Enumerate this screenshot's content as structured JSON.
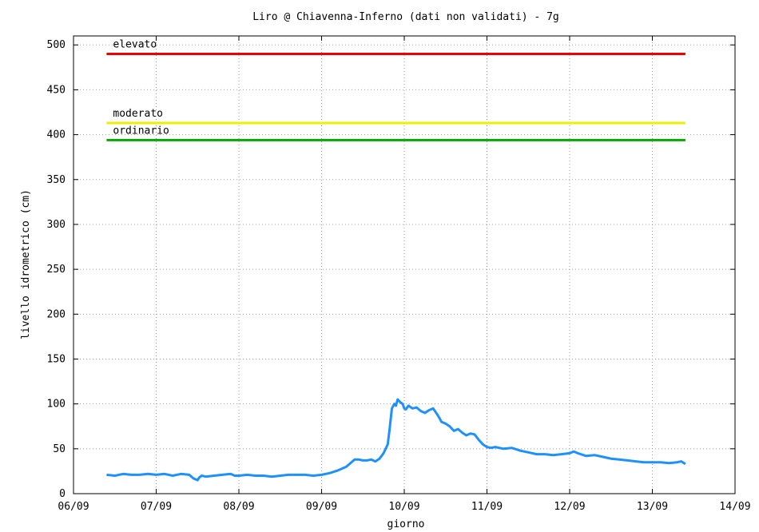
{
  "chart_data": {
    "type": "line",
    "title": "Liro @  Chiavenna-Inferno (dati non validati) - 7g",
    "xlabel": "giorno",
    "ylabel": "livello idrometrico (cm)",
    "ylim": [
      0,
      510
    ],
    "xlim": [
      0,
      8
    ],
    "yticks": [
      0,
      50,
      100,
      150,
      200,
      250,
      300,
      350,
      400,
      450,
      500
    ],
    "xticks": [
      {
        "v": 0,
        "label": "06/09"
      },
      {
        "v": 1,
        "label": "07/09"
      },
      {
        "v": 2,
        "label": "08/09"
      },
      {
        "v": 3,
        "label": "09/09"
      },
      {
        "v": 4,
        "label": "10/09"
      },
      {
        "v": 5,
        "label": "11/09"
      },
      {
        "v": 6,
        "label": "12/09"
      },
      {
        "v": 7,
        "label": "13/09"
      },
      {
        "v": 8,
        "label": "14/09"
      }
    ],
    "grid": true,
    "thresholds": [
      {
        "name": "elevato",
        "value": 490,
        "color": "#ee0000"
      },
      {
        "name": "moderato",
        "value": 413,
        "color": "#eeee00"
      },
      {
        "name": "ordinario",
        "value": 394,
        "color": "#00aa00"
      }
    ],
    "series": [
      {
        "color": "#1e90ff",
        "x": [
          0.4,
          0.5,
          0.6,
          0.7,
          0.8,
          0.9,
          1.0,
          1.1,
          1.2,
          1.3,
          1.4,
          1.45,
          1.5,
          1.52,
          1.55,
          1.6,
          1.7,
          1.8,
          1.9,
          1.95,
          2.0,
          2.1,
          2.2,
          2.3,
          2.4,
          2.5,
          2.6,
          2.7,
          2.8,
          2.9,
          3.0,
          3.1,
          3.2,
          3.3,
          3.35,
          3.4,
          3.45,
          3.5,
          3.55,
          3.6,
          3.65,
          3.7,
          3.75,
          3.8,
          3.82,
          3.85,
          3.88,
          3.9,
          3.92,
          3.95,
          3.98,
          4.0,
          4.02,
          4.05,
          4.1,
          4.15,
          4.2,
          4.25,
          4.3,
          4.35,
          4.4,
          4.42,
          4.45,
          4.5,
          4.55,
          4.6,
          4.65,
          4.7,
          4.75,
          4.8,
          4.85,
          4.9,
          4.95,
          5.0,
          5.05,
          5.1,
          5.2,
          5.3,
          5.4,
          5.5,
          5.6,
          5.7,
          5.8,
          5.9,
          6.0,
          6.05,
          6.1,
          6.2,
          6.3,
          6.4,
          6.5,
          6.6,
          6.7,
          6.8,
          6.9,
          7.0,
          7.1,
          7.2,
          7.3,
          7.35,
          7.4
        ],
        "y": [
          21,
          20,
          22,
          21,
          21,
          22,
          21,
          22,
          20,
          22,
          21,
          17,
          15,
          18,
          20,
          19,
          20,
          21,
          22,
          20,
          20,
          21,
          20,
          20,
          19,
          20,
          21,
          21,
          21,
          20,
          21,
          23,
          26,
          30,
          34,
          38,
          38,
          37,
          37,
          38,
          36,
          39,
          45,
          55,
          70,
          95,
          100,
          98,
          105,
          102,
          100,
          95,
          94,
          98,
          95,
          96,
          92,
          90,
          93,
          95,
          88,
          85,
          80,
          78,
          75,
          70,
          72,
          68,
          65,
          67,
          66,
          60,
          55,
          52,
          51,
          52,
          50,
          51,
          48,
          46,
          44,
          44,
          43,
          44,
          45,
          47,
          45,
          42,
          43,
          41,
          39,
          38,
          37,
          36,
          35,
          35,
          35,
          34,
          35,
          36,
          33
        ]
      }
    ]
  }
}
